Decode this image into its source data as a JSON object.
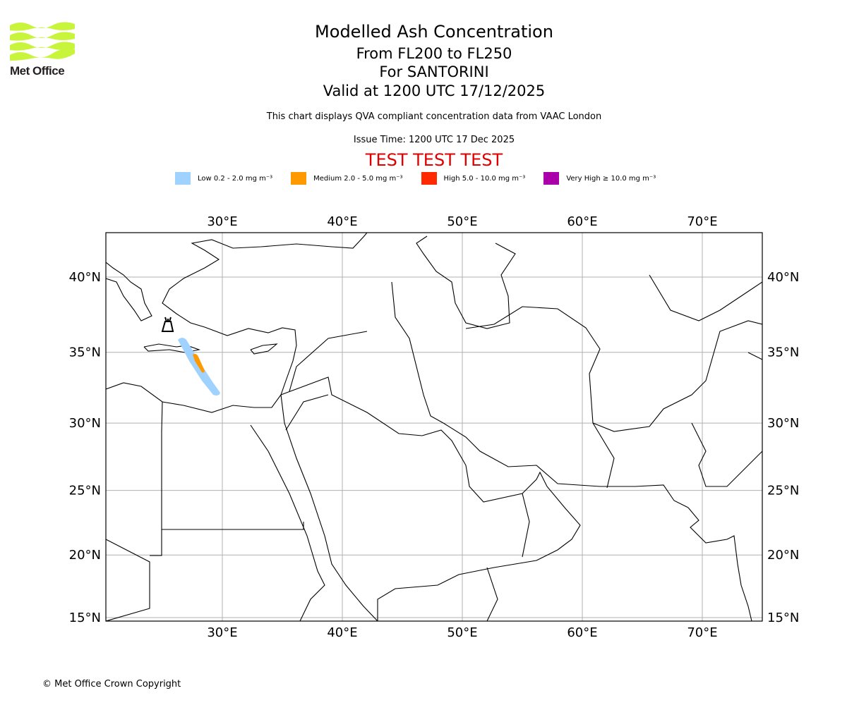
{
  "logo": {
    "name": "Met Office"
  },
  "header": {
    "title": "Modelled Ash Concentration",
    "levels": "From FL200 to FL250",
    "location": "For SANTORINI",
    "valid": "Valid at 1200 UTC 17/12/2025",
    "description": "This chart displays QVA compliant concentration data from VAAC London",
    "issue_time": "Issue Time: 1200 UTC 17 Dec 2025",
    "test_banner": "TEST TEST TEST"
  },
  "legend": [
    {
      "label": "Low 0.2 - 2.0 mg m⁻³",
      "color": "#a0d2ff"
    },
    {
      "label": "Medium 2.0 - 5.0 mg m⁻³",
      "color": "#ff9900"
    },
    {
      "label": "High 5.0 - 10.0 mg m⁻³",
      "color": "#ff2a00"
    },
    {
      "label": "Very High ≥ 10.0 mg m⁻³",
      "color": "#aa00aa"
    }
  ],
  "map": {
    "lon_ticks": [
      30,
      40,
      50,
      60,
      70
    ],
    "lat_ticks": [
      15,
      20,
      25,
      30,
      35,
      40
    ],
    "lon_labels": [
      "30°E",
      "40°E",
      "50°E",
      "60°E",
      "70°E"
    ],
    "lat_labels": [
      "15°N",
      "20°N",
      "25°N",
      "30°N",
      "35°N",
      "40°N"
    ],
    "volcano": "Santorini"
  },
  "footer": {
    "copyright": "© Met Office Crown Copyright"
  }
}
